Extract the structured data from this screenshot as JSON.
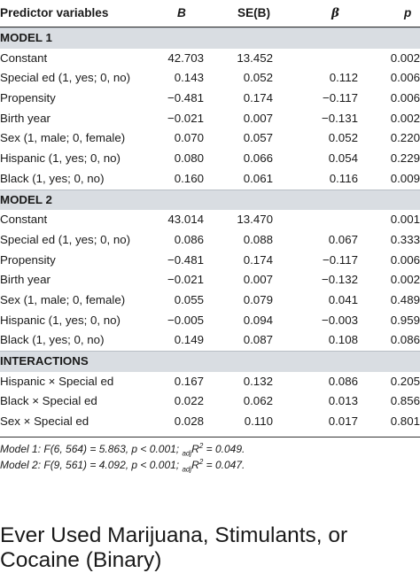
{
  "headers": [
    "Predictor variables",
    "B",
    "SE(B)",
    "β",
    "p"
  ],
  "sections": [
    {
      "title": "MODEL 1",
      "rows": [
        [
          "Constant",
          "42.703",
          "13.452",
          "",
          "0.002"
        ],
        [
          "Special ed (1, yes; 0, no)",
          "0.143",
          "0.052",
          "0.112",
          "0.006"
        ],
        [
          "Propensity",
          "−0.481",
          "0.174",
          "−0.117",
          "0.006"
        ],
        [
          "Birth year",
          "−0.021",
          "0.007",
          "−0.131",
          "0.002"
        ],
        [
          "Sex (1, male; 0, female)",
          "0.070",
          "0.057",
          "0.052",
          "0.220"
        ],
        [
          "Hispanic (1, yes; 0, no)",
          "0.080",
          "0.066",
          "0.054",
          "0.229"
        ],
        [
          "Black (1, yes; 0, no)",
          "0.160",
          "0.061",
          "0.116",
          "0.009"
        ]
      ]
    },
    {
      "title": "MODEL 2",
      "rows": [
        [
          "Constant",
          "43.014",
          "13.470",
          "",
          "0.001"
        ],
        [
          "Special ed (1, yes; 0, no)",
          "0.086",
          "0.088",
          "0.067",
          "0.333"
        ],
        [
          "Propensity",
          "−0.481",
          "0.174",
          "−0.117",
          "0.006"
        ],
        [
          "Birth year",
          "−0.021",
          "0.007",
          "−0.132",
          "0.002"
        ],
        [
          "Sex (1, male; 0, female)",
          "0.055",
          "0.079",
          "0.041",
          "0.489"
        ],
        [
          "Hispanic (1, yes; 0, no)",
          "−0.005",
          "0.094",
          "−0.003",
          "0.959"
        ],
        [
          "Black (1, yes; 0, no)",
          "0.149",
          "0.087",
          "0.108",
          "0.086"
        ]
      ]
    },
    {
      "title": "INTERACTIONS",
      "rows": [
        [
          "Hispanic × Special ed",
          "0.167",
          "0.132",
          "0.086",
          "0.205"
        ],
        [
          "Black × Special ed",
          "0.022",
          "0.062",
          "0.013",
          "0.856"
        ],
        [
          "Sex × Special ed",
          "0.028",
          "0.110",
          "0.017",
          "0.801"
        ]
      ]
    }
  ],
  "notes": [
    "Model 1: F(6, 564) = 5.863, p < 0.001; adjR2 = 0.049.",
    "Model 2: F(9, 561) = 4.092, p < 0.001; adjR2 = 0.047."
  ],
  "heading": "Ever Used Marijuana, Stimulants, or Cocaine (Binary)"
}
